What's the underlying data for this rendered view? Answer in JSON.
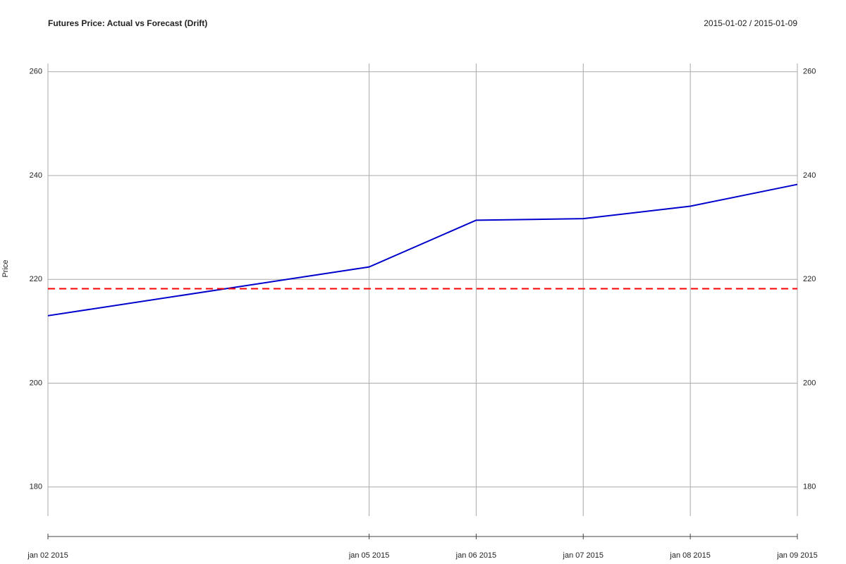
{
  "chart_data": {
    "type": "line",
    "title": "Futures Price: Actual vs Forecast (Drift)",
    "subtitle": "2015-01-02 / 2015-01-09",
    "y_label": "Price",
    "x": [
      "jan 02 2015",
      "jan 05 2015",
      "jan 06 2015",
      "jan 07 2015",
      "jan 08 2015",
      "jan 09 2015"
    ],
    "series": [
      {
        "color": "#0000cc",
        "dash": false,
        "values": [
          213.0,
          222.4,
          231.4,
          231.7,
          234.1,
          238.3
        ]
      },
      {
        "color": "#ff0000",
        "dash": true,
        "values": [
          218.2,
          218.2,
          218.2,
          218.2,
          218.2,
          218.2
        ]
      }
    ],
    "ylim": [
      174.4,
      261.6
    ],
    "yticks": [
      180,
      200,
      220,
      240,
      260
    ],
    "grid": true
  }
}
